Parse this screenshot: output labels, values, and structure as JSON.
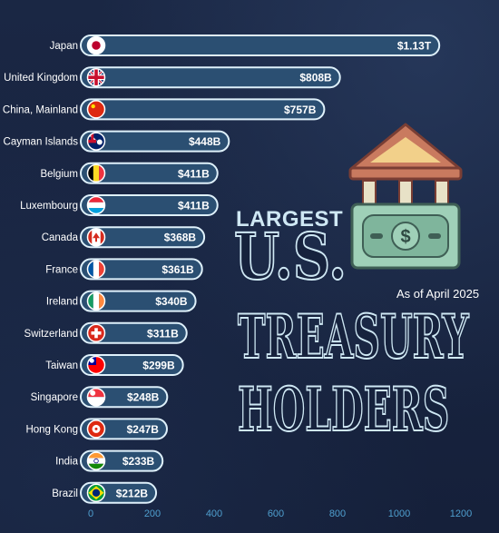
{
  "title": {
    "line1": "LARGEST",
    "line2": "U.S.",
    "line3": "TREASURY",
    "line4": "HOLDERS"
  },
  "subtitle": "As of April 2025",
  "icons": {
    "bank": "bank-icon",
    "money": "dollar-bill-icon"
  },
  "colors": {
    "background": "#16223d",
    "bar_fill": "#2b4f72",
    "bar_outline": "#dff1fb",
    "tick": "#4f9fcf",
    "bank_roof": "#c97a5f",
    "bill": "#7fb59c"
  },
  "chart_data": {
    "type": "bar",
    "orientation": "horizontal",
    "categories": [
      "Japan",
      "United Kingdom",
      "China, Mainland",
      "Cayman Islands",
      "Belgium",
      "Luxembourg",
      "Canada",
      "France",
      "Ireland",
      "Switzerland",
      "Taiwan",
      "Singapore",
      "Hong Kong",
      "India",
      "Brazil"
    ],
    "values": [
      1130,
      808,
      757,
      448,
      411,
      411,
      368,
      361,
      340,
      311,
      299,
      248,
      247,
      233,
      212
    ],
    "data_labels": [
      "$1.13T",
      "$808B",
      "$757B",
      "$448B",
      "$411B",
      "$411B",
      "$368B",
      "$361B",
      "$340B",
      "$311B",
      "$299B",
      "$248B",
      "$247B",
      "$233B",
      "$212B"
    ],
    "flags": [
      "flag-japan-icon",
      "flag-uk-icon",
      "flag-china-icon",
      "flag-cayman-islands-icon",
      "flag-belgium-icon",
      "flag-luxembourg-icon",
      "flag-canada-icon",
      "flag-france-icon",
      "flag-ireland-icon",
      "flag-switzerland-icon",
      "flag-taiwan-icon",
      "flag-singapore-icon",
      "flag-hong-kong-icon",
      "flag-india-icon",
      "flag-brazil-icon"
    ],
    "xticks": [
      "0",
      "200",
      "400",
      "600",
      "800",
      "1000",
      "1200"
    ],
    "xlim": [
      0,
      1200
    ],
    "title": "",
    "xlabel": "",
    "ylabel": "",
    "grid": false
  }
}
